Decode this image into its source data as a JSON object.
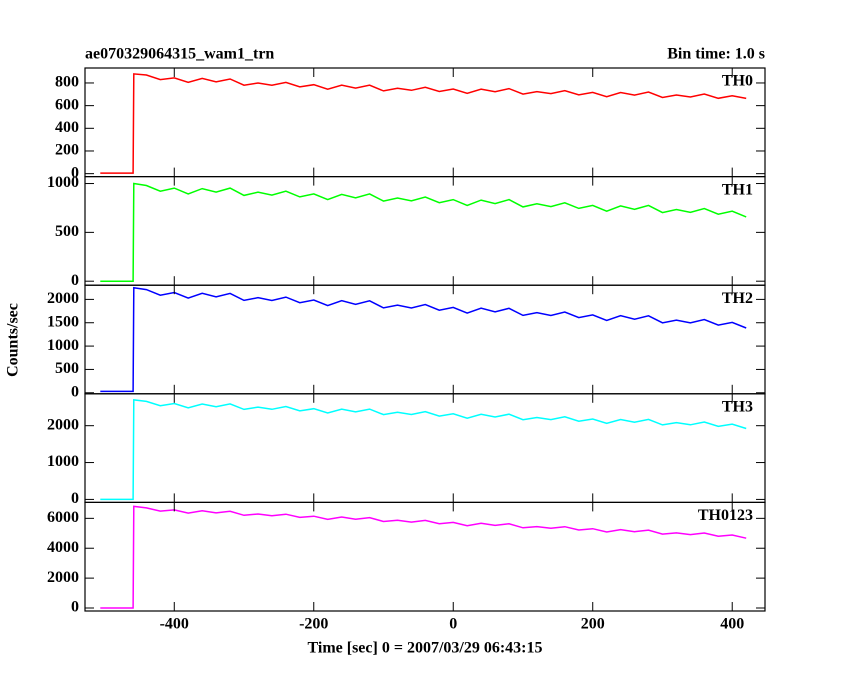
{
  "title": "ae070329064315_wam1_trn",
  "subtitle": "Bin time: 1.0 s",
  "xlabel": "Time [sec] 0 = 2007/03/29 06:43:15",
  "ylabel": "Counts/sec",
  "xlim": [
    -528,
    447
  ],
  "xticks": [
    -400,
    -200,
    0,
    200,
    400
  ],
  "x": [
    -506,
    -459,
    -458,
    -440,
    -420,
    -400,
    -380,
    -360,
    -340,
    -320,
    -300,
    -280,
    -260,
    -240,
    -220,
    -200,
    -180,
    -160,
    -140,
    -120,
    -100,
    -80,
    -60,
    -40,
    -20,
    0,
    20,
    40,
    60,
    80,
    100,
    120,
    140,
    160,
    180,
    200,
    220,
    240,
    260,
    280,
    300,
    320,
    340,
    360,
    380,
    400,
    420
  ],
  "chart_data": [
    {
      "type": "line",
      "ylim": [
        -26,
        932
      ],
      "yticks": [
        0,
        200,
        400,
        600,
        800
      ],
      "series": [
        {
          "name": "TH0",
          "color": "#ff0000",
          "values": [
            5,
            5,
            880,
            870,
            830,
            845,
            805,
            840,
            810,
            835,
            780,
            800,
            780,
            805,
            765,
            785,
            745,
            780,
            755,
            780,
            730,
            753,
            735,
            762,
            725,
            747,
            709,
            746,
            723,
            750,
            702,
            724,
            706,
            733,
            695,
            717,
            679,
            716,
            693,
            720,
            672,
            694,
            676,
            703,
            665,
            687,
            664
          ]
        }
      ]
    },
    {
      "type": "line",
      "ylim": [
        -41,
        1071
      ],
      "yticks": [
        0,
        500,
        1000
      ],
      "series": [
        {
          "name": "TH1",
          "color": "#00ff00",
          "values": [
            0,
            0,
            1000,
            980,
            922,
            953,
            894,
            948,
            912,
            953,
            879,
            911,
            882,
            921,
            863,
            894,
            835,
            889,
            854,
            894,
            820,
            852,
            823,
            862,
            804,
            835,
            776,
            830,
            795,
            835,
            761,
            793,
            764,
            803,
            745,
            776,
            717,
            771,
            736,
            776,
            702,
            734,
            705,
            744,
            686,
            717,
            658
          ]
        }
      ]
    },
    {
      "type": "line",
      "ylim": [
        -22,
        2304
      ],
      "yticks": [
        0,
        500,
        1000,
        1500,
        2000
      ],
      "series": [
        {
          "name": "TH2",
          "color": "#0000ff",
          "values": [
            30,
            30,
            2250,
            2210,
            2089,
            2148,
            2027,
            2131,
            2055,
            2129,
            1978,
            2037,
            1976,
            2050,
            1929,
            1988,
            1867,
            1971,
            1895,
            1969,
            1818,
            1877,
            1816,
            1890,
            1769,
            1828,
            1707,
            1811,
            1735,
            1809,
            1658,
            1717,
            1656,
            1730,
            1609,
            1668,
            1547,
            1651,
            1575,
            1649,
            1498,
            1557,
            1496,
            1570,
            1449,
            1508,
            1387
          ]
        }
      ]
    },
    {
      "type": "line",
      "ylim": [
        -81,
        2865
      ],
      "yticks": [
        0,
        1000,
        2000
      ],
      "series": [
        {
          "name": "TH3",
          "color": "#00ffff",
          "values": [
            0,
            0,
            2700,
            2660,
            2541,
            2602,
            2483,
            2589,
            2515,
            2591,
            2442,
            2503,
            2444,
            2520,
            2401,
            2462,
            2343,
            2449,
            2375,
            2451,
            2302,
            2363,
            2304,
            2380,
            2261,
            2322,
            2203,
            2309,
            2235,
            2311,
            2162,
            2223,
            2164,
            2240,
            2121,
            2182,
            2063,
            2169,
            2095,
            2171,
            2022,
            2083,
            2024,
            2100,
            1981,
            2042,
            1923
          ]
        }
      ]
    },
    {
      "type": "line",
      "ylim": [
        -200,
        7067
      ],
      "yticks": [
        0,
        2000,
        4000,
        6000
      ],
      "series": [
        {
          "name": "TH0123",
          "color": "#ff00ff",
          "values": [
            0,
            0,
            6800,
            6700,
            6483,
            6566,
            6349,
            6507,
            6365,
            6473,
            6206,
            6289,
            6172,
            6280,
            6063,
            6146,
            5929,
            6087,
            5945,
            6053,
            5786,
            5869,
            5752,
            5860,
            5643,
            5726,
            5509,
            5667,
            5525,
            5633,
            5366,
            5449,
            5332,
            5440,
            5223,
            5306,
            5089,
            5247,
            5105,
            5213,
            4946,
            5029,
            4912,
            5020,
            4803,
            4886,
            4669
          ]
        }
      ]
    }
  ]
}
